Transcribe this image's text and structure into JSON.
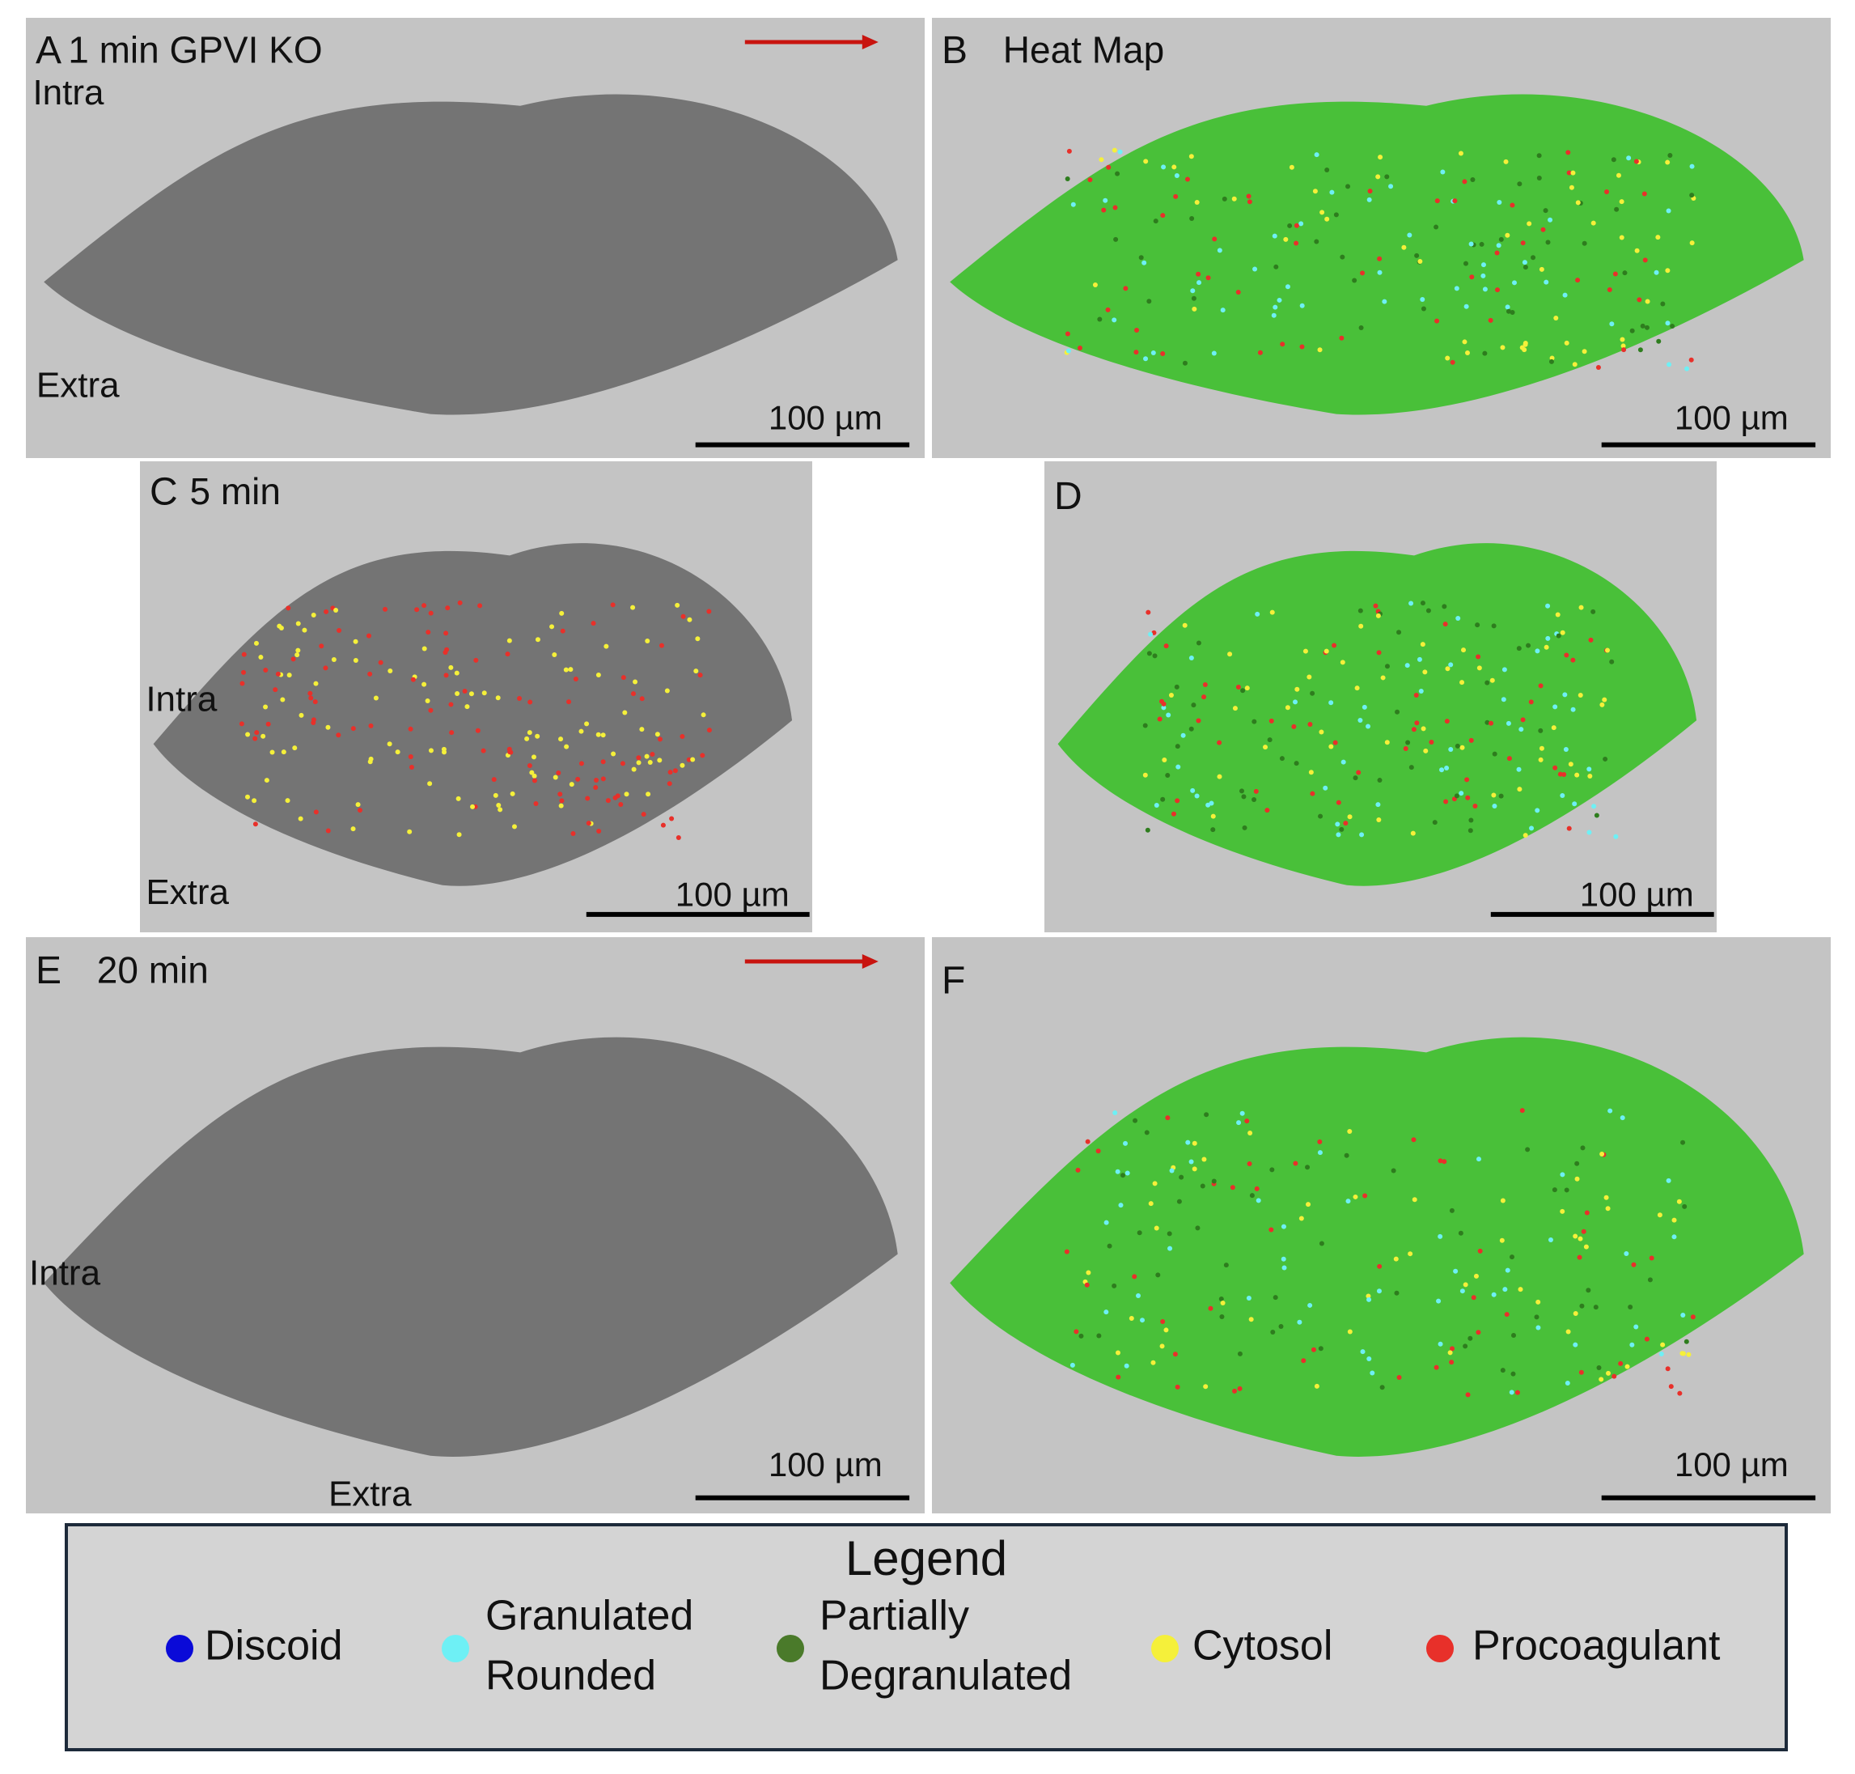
{
  "panels": [
    {
      "label": "A",
      "title": "1 min GPVI KO",
      "annotations": [
        "Intra",
        "Extra"
      ],
      "scale_bar": "100 µm"
    },
    {
      "label": "B",
      "title": "Heat Map",
      "scale_bar": "100 µm"
    },
    {
      "label": "C",
      "title": "5 min",
      "annotations": [
        "Intra",
        "Extra"
      ],
      "scale_bar": "100 µm"
    },
    {
      "label": "D",
      "scale_bar": "100 µm"
    },
    {
      "label": "E",
      "title": "20 min",
      "annotations": [
        "Intra",
        "Extra"
      ],
      "scale_bar": "100 µm"
    },
    {
      "label": "F",
      "scale_bar": "100 µm"
    }
  ],
  "legend": {
    "title": "Legend",
    "items": [
      {
        "lines": [
          "Discoid"
        ],
        "color": "#0a0ad8"
      },
      {
        "lines": [
          "Granulated",
          "Rounded"
        ],
        "color": "#6ef0f5"
      },
      {
        "lines": [
          "Partially",
          "Degranulated"
        ],
        "color": "#4a7a2a"
      },
      {
        "lines": [
          "Cytosol"
        ],
        "color": "#f5f03a"
      },
      {
        "lines": [
          "Procoagulant"
        ],
        "color": "#e8302a"
      }
    ]
  }
}
